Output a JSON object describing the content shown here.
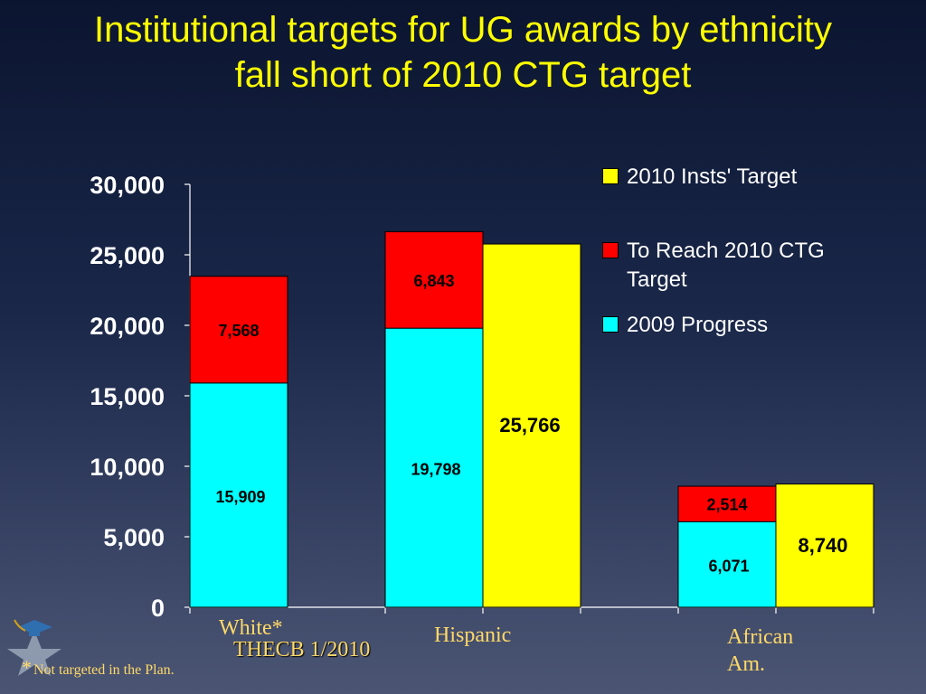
{
  "title": {
    "line1": "Institutional targets for UG awards by ethnicity",
    "line2": "fall short of 2010 CTG target"
  },
  "legend": [
    {
      "label": "2010 Insts' Target",
      "color": "#ffff00"
    },
    {
      "label": "To Reach 2010 CTG Target",
      "color": "#ff0000"
    },
    {
      "label": "2009 Progress",
      "color": "#00ffff"
    }
  ],
  "categories_text": {
    "white": "White*",
    "hispanic": "Hispanic",
    "african_line1": "African",
    "african_line2": "Am."
  },
  "source": "THECB 1/2010",
  "footnote": {
    "star": "*",
    "text": "Not targeted in the Plan."
  },
  "chart_data": {
    "type": "bar",
    "categories": [
      "White*",
      "Hispanic",
      "African Am."
    ],
    "ylim": [
      0,
      30000
    ],
    "yticks": [
      "0",
      "5,000",
      "10,000",
      "15,000",
      "20,000",
      "25,000",
      "30,000"
    ],
    "ytick_values": [
      0,
      5000,
      10000,
      15000,
      20000,
      25000,
      30000
    ],
    "stacked_series": [
      {
        "name": "2009 Progress",
        "color": "#00ffff",
        "values": [
          15909,
          19798,
          6071
        ],
        "labels": [
          "15,909",
          "19,798",
          "6,071"
        ]
      },
      {
        "name": "To Reach 2010 CTG Target",
        "color": "#ff0000",
        "values": [
          7568,
          6843,
          2514
        ],
        "labels": [
          "7,568",
          "6,843",
          "2,514"
        ]
      }
    ],
    "target_series": {
      "name": "2010 Insts' Target",
      "color": "#ffff00",
      "values": [
        null,
        25766,
        8740
      ],
      "labels": [
        "",
        "25,766",
        "8,740"
      ]
    },
    "grid": false,
    "legend_position": "top-right"
  }
}
